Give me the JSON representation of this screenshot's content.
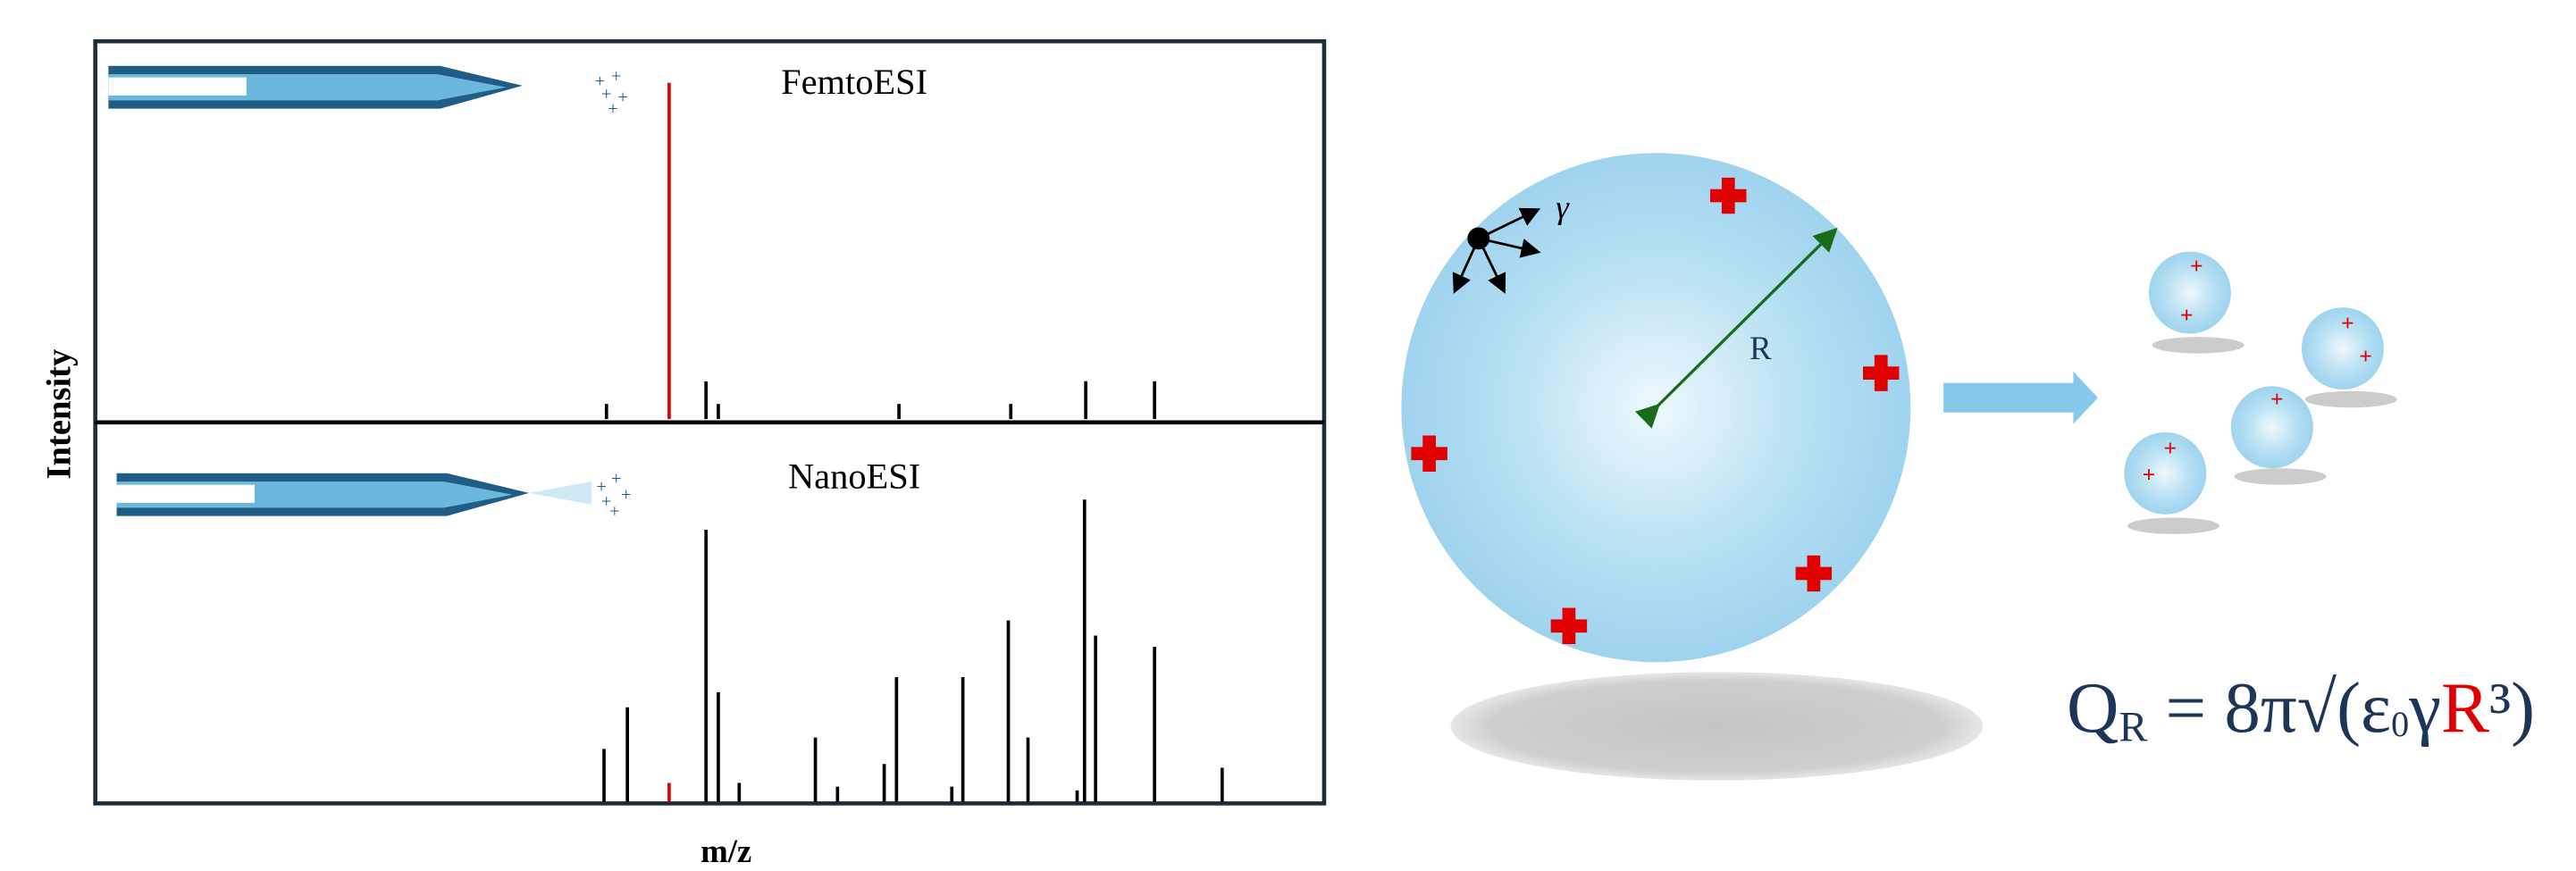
{
  "chart_data": [
    {
      "type": "stem",
      "title": "FemtoESI",
      "x": [
        41.6,
        46.7,
        49.7,
        50.7,
        65.4,
        74.5,
        80.6,
        86.2
      ],
      "values": [
        4,
        89,
        10,
        4,
        4,
        4,
        10,
        10
      ],
      "colors": [
        "#000000",
        "#e00000",
        "#000000",
        "#000000",
        "#000000",
        "#000000",
        "#000000",
        "#000000"
      ],
      "xlim": [
        0,
        100
      ],
      "ylim": [
        0,
        100
      ]
    },
    {
      "type": "stem",
      "title": "NanoESI",
      "x": [
        41.4,
        43.3,
        46.7,
        49.7,
        50.7,
        52.4,
        58.6,
        60.4,
        64.2,
        65.2,
        69.7,
        70.6,
        74.3,
        75.9,
        79.9,
        80.5,
        81.4,
        86.2,
        91.7
      ],
      "values": [
        14,
        25,
        5,
        72,
        29,
        5,
        17,
        4,
        10,
        33,
        4,
        33,
        48,
        17,
        3,
        80,
        44,
        41,
        9
      ],
      "colors": [
        "#000000",
        "#000000",
        "#e00000",
        "#000000",
        "#000000",
        "#000000",
        "#000000",
        "#000000",
        "#000000",
        "#000000",
        "#000000",
        "#000000",
        "#000000",
        "#000000",
        "#000000",
        "#000000",
        "#000000",
        "#000000",
        "#000000"
      ],
      "xlim": [
        0,
        100
      ],
      "ylim": [
        0,
        100
      ]
    }
  ],
  "axes": {
    "ylabel": "Intensity",
    "xlabel": "m/z"
  },
  "diagram": {
    "surface_tension": "γ",
    "radius": "R",
    "formula": {
      "q": "Q",
      "q_sub": "R",
      "middle": " = 8π√(ε",
      "eps_sub": "0",
      "gamma": "γ",
      "r": "R",
      "end": "³)"
    }
  }
}
